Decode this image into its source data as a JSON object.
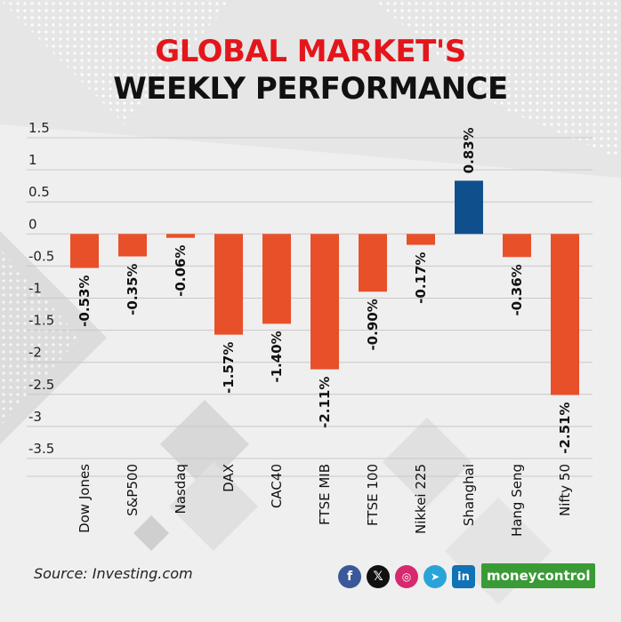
{
  "header": {
    "title_line1": "GLOBAL MARKET'S",
    "title_line2": "WEEKLY PERFORMANCE"
  },
  "footer": {
    "source": "Source: Investing.com",
    "brand": "moneycontrol",
    "social_icons": [
      "facebook-icon",
      "x-icon",
      "instagram-icon",
      "telegram-icon",
      "linkedin-icon"
    ]
  },
  "colors": {
    "title_red": "#e3161b",
    "negative_bar": "#e8502a",
    "positive_bar": "#0f4f8c",
    "gridline": "#c8c8c8"
  },
  "chart_data": {
    "type": "bar",
    "categories": [
      "Dow Jones",
      "S&P500",
      "Nasdaq",
      "DAX",
      "CAC40",
      "FTSE MIB",
      "FTSE 100",
      "Nikkei 225",
      "Shanghai",
      "Hang Seng",
      "Nifty 50"
    ],
    "values": [
      -0.53,
      -0.35,
      -0.06,
      -1.57,
      -1.4,
      -2.11,
      -0.9,
      -0.17,
      0.83,
      -0.36,
      -2.51
    ],
    "data_labels": [
      "-0.53%",
      "-0.35%",
      "-0.06%",
      "-1.57%",
      "-1.40%",
      "-2.11%",
      "-0.90%",
      "-0.17%",
      "0.83%",
      "-0.36%",
      "-2.51%"
    ],
    "y_ticks": [
      1.5,
      1,
      0.5,
      0,
      -0.5,
      -1,
      -1.5,
      -2,
      -2.5,
      -3,
      -3.5
    ],
    "y_tick_labels": [
      "1.5",
      "1",
      "0.5",
      "0",
      "-0.5",
      "-1",
      "-1.5",
      "-2",
      "-2.5",
      "-3",
      "-3.5"
    ],
    "ylim": [
      -3.75,
      1.5
    ],
    "grid": true
  }
}
